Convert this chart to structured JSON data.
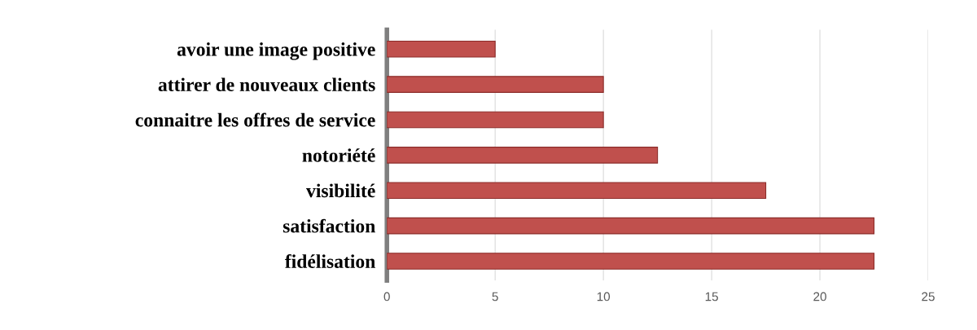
{
  "chart_data": {
    "type": "bar",
    "orientation": "horizontal",
    "categories": [
      "avoir une image positive",
      "attirer de nouveaux clients",
      "connaitre les offres de service",
      "notoriété",
      "visibilité",
      "satisfaction",
      "fidélisation"
    ],
    "values": [
      5,
      10,
      10,
      12.5,
      17.5,
      22.5,
      22.5
    ],
    "color": "#c0504d",
    "xlim": [
      0,
      25
    ],
    "xticks": [
      0,
      5,
      10,
      15,
      20,
      25
    ],
    "grid": "x",
    "legend": false
  }
}
